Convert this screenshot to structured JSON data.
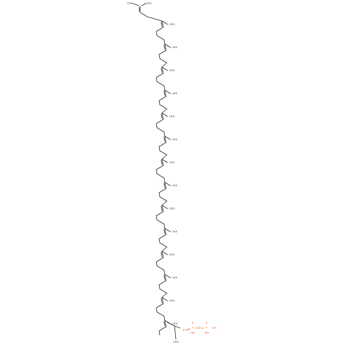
{
  "figure": {
    "kind": "skeletal structural formula",
    "description": "polyprenyl diphosphate chain",
    "repeat_units": 14
  },
  "labels": {
    "methyl": "CH3",
    "oxygen": "O",
    "phosphorus": "P",
    "hydroxyl": "OH"
  },
  "colors": {
    "bond": "#222222",
    "oxygen": "#e0301e",
    "phosphorus": "#e07b00",
    "background": "#ffffff"
  }
}
